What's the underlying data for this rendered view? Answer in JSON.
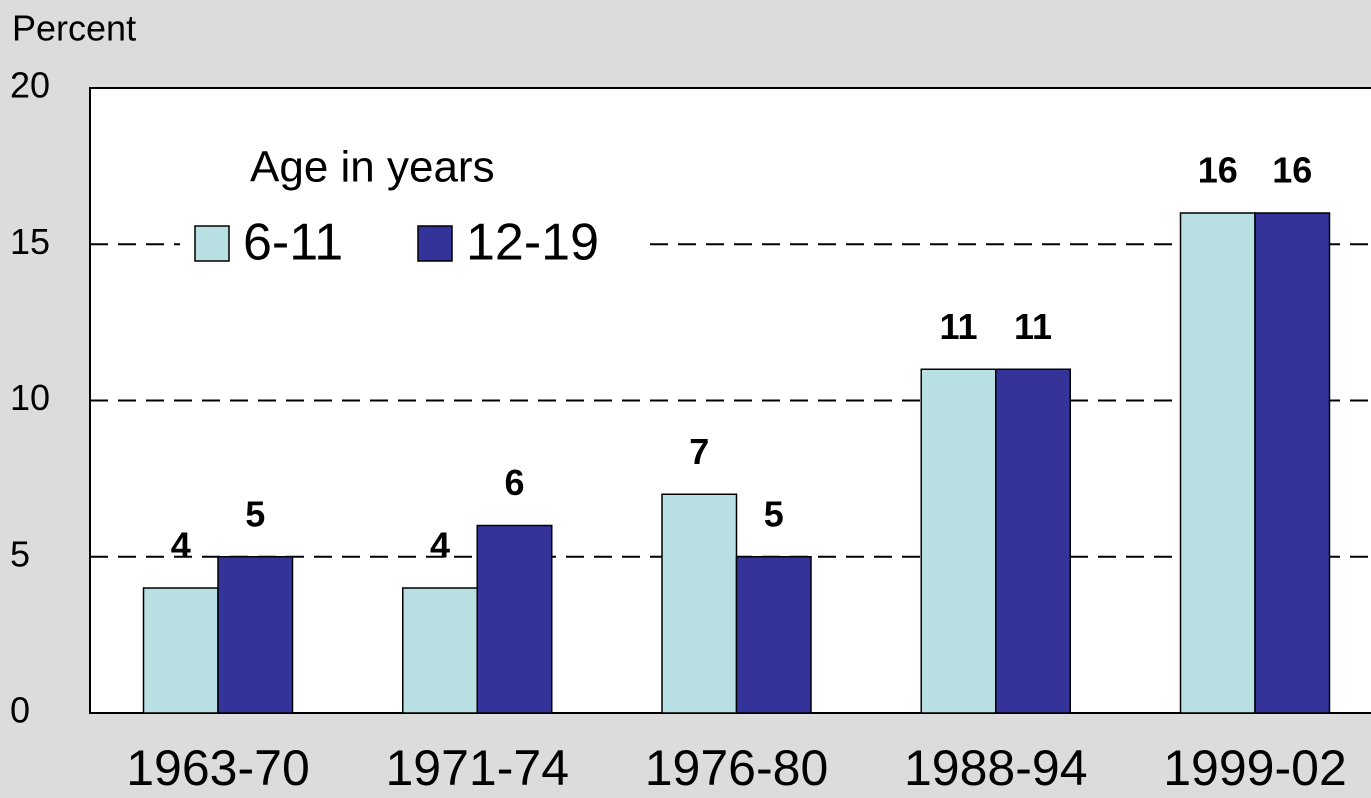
{
  "chart_data": {
    "type": "bar",
    "y_label": "Percent",
    "legend_title": "Age in years",
    "categories": [
      "1963-70",
      "1971-74",
      "1976-80",
      "1988-94",
      "1999-02"
    ],
    "series": [
      {
        "name": "6-11",
        "color": "#b8e0e2",
        "values": [
          4,
          4,
          7,
          11,
          16
        ]
      },
      {
        "name": "12-19",
        "color": "#333399",
        "values": [
          5,
          6,
          5,
          11,
          16
        ]
      }
    ],
    "ylim": [
      0,
      20
    ],
    "yticks": [
      0,
      5,
      10,
      15,
      20
    ],
    "grid": true
  }
}
